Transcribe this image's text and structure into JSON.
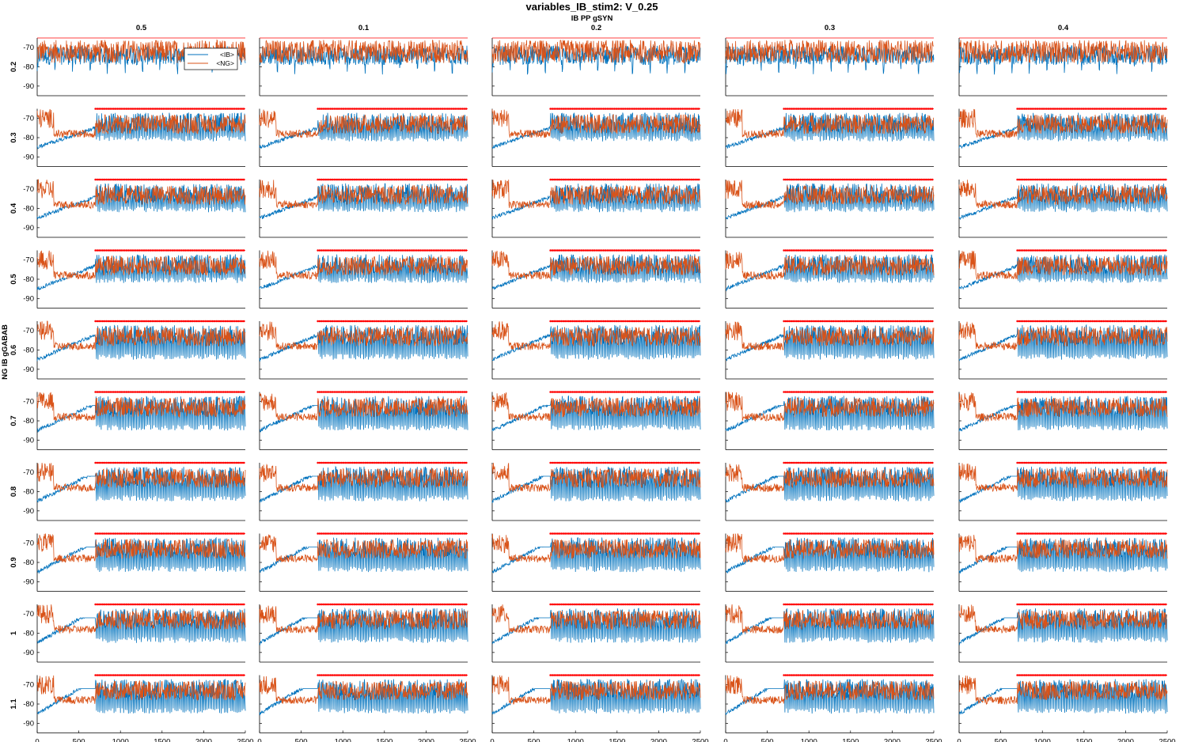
{
  "figure": {
    "title": "variables_IB_stim2: V_0.25",
    "col_param_label": "IB PP gSYN",
    "row_param_label": "NG IB gGABAB"
  },
  "colors": {
    "ib": "#0072bd",
    "ng": "#d95319",
    "spike_marker": "#ff0000",
    "axis": "#000000"
  },
  "chart_data": {
    "type": "line",
    "layout": "small-multiples grid 10 rows x 5 columns",
    "columns": [
      "0.5",
      "0.1",
      "0.2",
      "0.3",
      "0.4"
    ],
    "rows": [
      "0.2",
      "0.3",
      "0.4",
      "0.5",
      "0.6",
      "0.7",
      "0.8",
      "0.9",
      "1",
      "1.1"
    ],
    "series": [
      {
        "name": "<IB>"
      },
      {
        "name": "<NG>"
      }
    ],
    "legend": {
      "placement": "top-right of first panel",
      "entries": [
        "<IB>",
        "<NG>"
      ]
    },
    "xlim": [
      0,
      2500
    ],
    "ylim": [
      -95,
      -65
    ],
    "xticks": [
      0,
      500,
      1000,
      1500,
      2000,
      2500
    ],
    "xtick_labels": [
      "0",
      "500",
      "1000",
      "1500",
      "2000",
      "2500"
    ],
    "yticks": [
      -70,
      -80,
      -90
    ],
    "ytick_labels": [
      "-70",
      "-80",
      "-90"
    ],
    "stimulus_onset": 700,
    "spike_marker_level": -65,
    "grid": false,
    "description_of_traces": "NG trace fluctuates near -73 mV; IB trace fluctuates near -75 mV with periodic downward deflections to about -85 mV; after t=700 (rows 0.3-1.1) IB bursts repeatedly with red spike markers at top"
  }
}
